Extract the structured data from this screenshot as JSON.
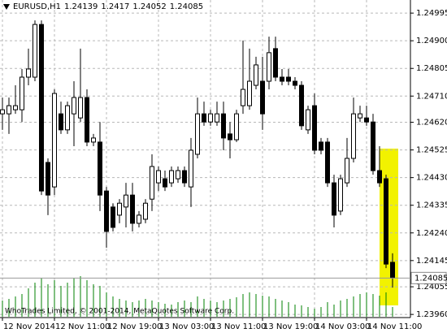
{
  "chart_data": {
    "type": "candlestick",
    "title": "EURUSD,H1",
    "footer": "WhoTrades Limited, © 2001-2014, MetaQuotes Software Corp.",
    "categories": [
      "12 Nov 2014",
      null,
      null,
      null,
      null,
      null,
      null,
      null,
      "12 Nov 11:00",
      null,
      null,
      null,
      null,
      null,
      null,
      null,
      "12 Nov 19:00",
      null,
      null,
      null,
      null,
      null,
      null,
      null,
      "13 Nov 03:00",
      null,
      null,
      null,
      null,
      null,
      null,
      null,
      "13 Nov 11:00",
      null,
      null,
      null,
      null,
      null,
      null,
      null,
      "13 Nov 19:00",
      null,
      null,
      null,
      null,
      null,
      null,
      null,
      "14 Nov 03:00",
      null,
      null,
      null,
      null,
      null,
      null,
      null,
      "14 Nov 11:00",
      null,
      null,
      null,
      null
    ],
    "open": [
      1.24649,
      1.24649,
      1.24663,
      1.24663,
      1.24775,
      1.24775,
      1.24956,
      1.24482,
      1.24398,
      1.24649,
      1.24594,
      1.24649,
      1.24635,
      1.24705,
      1.24552,
      1.24552,
      1.24384,
      1.24329,
      1.24301,
      1.24329,
      1.2437,
      1.24273,
      1.24287,
      1.24356,
      1.24412,
      1.24426,
      1.24412,
      1.24426,
      1.24454,
      1.24398,
      1.2451,
      1.24649,
      1.24621,
      1.24621,
      1.24649,
      1.2458,
      1.2456,
      1.24677,
      1.24677,
      1.24747,
      1.24761,
      1.24761,
      1.24873,
      1.24775,
      1.24775,
      1.24761,
      1.24747,
      1.24594,
      1.24677,
      1.24552,
      1.24552,
      1.24412,
      1.24315,
      1.24412,
      1.24496,
      1.24635,
      1.24635,
      1.24621,
      1.24454,
      1.24426,
      1.24139
    ],
    "high": [
      1.24705,
      1.24705,
      1.24747,
      1.24803,
      1.24873,
      1.2497,
      1.2497,
      1.24496,
      1.24733,
      1.24691,
      1.24691,
      1.24761,
      1.24873,
      1.24733,
      1.2458,
      1.24621,
      1.24398,
      1.24342,
      1.24356,
      1.24412,
      1.24412,
      1.24315,
      1.24356,
      1.2451,
      1.24468,
      1.24454,
      1.24468,
      1.24468,
      1.24468,
      1.24566,
      1.24705,
      1.24691,
      1.24663,
      1.24691,
      1.24691,
      1.24621,
      1.24663,
      1.24901,
      1.24873,
      1.24845,
      1.24845,
      1.24914,
      1.24914,
      1.24803,
      1.24803,
      1.24775,
      1.24761,
      1.24677,
      1.24719,
      1.24566,
      1.24566,
      1.2444,
      1.2444,
      1.24566,
      1.24705,
      1.24677,
      1.24677,
      1.24649,
      1.24538,
      1.2444,
      1.2417
    ],
    "low": [
      1.24594,
      1.2458,
      1.24649,
      1.24621,
      1.24747,
      1.24761,
      1.2437,
      1.24301,
      1.2437,
      1.2458,
      1.2458,
      1.24538,
      1.24621,
      1.24538,
      1.24538,
      1.24315,
      1.24189,
      1.24245,
      1.24273,
      1.24259,
      1.24245,
      1.24259,
      1.24273,
      1.24315,
      1.24384,
      1.24384,
      1.24398,
      1.24412,
      1.24398,
      1.24329,
      1.24496,
      1.24608,
      1.24608,
      1.24608,
      1.24524,
      1.24496,
      1.24552,
      1.24649,
      1.24663,
      1.24733,
      1.24594,
      1.24733,
      1.24761,
      1.24747,
      1.24747,
      1.24733,
      1.24594,
      1.2458,
      1.2451,
      1.2451,
      1.24398,
      1.24259,
      1.24301,
      1.24398,
      1.24482,
      1.24621,
      1.24608,
      1.2444,
      1.24398,
      1.24119,
      1.24052
    ],
    "close": [
      1.24663,
      1.24677,
      1.24677,
      1.24775,
      1.24803,
      1.24956,
      1.24384,
      1.2437,
      1.24719,
      1.24594,
      1.24677,
      1.24705,
      1.24705,
      1.24552,
      1.24566,
      1.2437,
      1.24245,
      1.24259,
      1.24342,
      1.2437,
      1.24273,
      1.24301,
      1.24342,
      1.24468,
      1.24454,
      1.24398,
      1.24454,
      1.24454,
      1.24412,
      1.24524,
      1.24649,
      1.24621,
      1.24649,
      1.24649,
      1.24566,
      1.2456,
      1.24649,
      1.24733,
      1.24761,
      1.24817,
      1.24649,
      1.24859,
      1.24775,
      1.24761,
      1.24761,
      1.24747,
      1.24608,
      1.24663,
      1.24524,
      1.24524,
      1.24412,
      1.24301,
      1.24426,
      1.24496,
      1.24649,
      1.24649,
      1.24621,
      1.24454,
      1.24412,
      1.24133,
      1.24085
    ],
    "volume": [
      2000,
      2200,
      2500,
      2800,
      3500,
      4200,
      4800,
      4000,
      4500,
      3800,
      4200,
      4800,
      5000,
      4500,
      4000,
      3800,
      3000,
      2500,
      2200,
      2000,
      1800,
      2000,
      2200,
      2000,
      1800,
      1600,
      1500,
      1800,
      2000,
      1800,
      2500,
      2200,
      2000,
      1800,
      2000,
      2200,
      2400,
      2800,
      3000,
      2800,
      2600,
      2500,
      2200,
      2000,
      1800,
      1500,
      1400,
      1200,
      1000,
      1200,
      1800,
      1500,
      2000,
      2200,
      2500,
      2800,
      3000,
      2800,
      2600,
      3000,
      1200
    ],
    "ylim": [
      1.23952,
      1.2504
    ],
    "yticks": [
      1.24995,
      {
        "value": 1.249,
        "label": "1.24900"
      },
      1.24805,
      {
        "value": 1.2471,
        "label": "1.24710"
      },
      {
        "value": 1.2462,
        "label": "1.24620"
      },
      1.24525,
      {
        "value": 1.2443,
        "label": "1.24430"
      },
      1.24335,
      {
        "value": 1.2424,
        "label": "1.24240"
      },
      1.24145,
      1.24055,
      {
        "value": 1.2396,
        "label": "1.23960"
      }
    ],
    "grid": true,
    "up_color": "#ffffff",
    "down_color": "#000000",
    "volume_color": "#008000"
  }
}
